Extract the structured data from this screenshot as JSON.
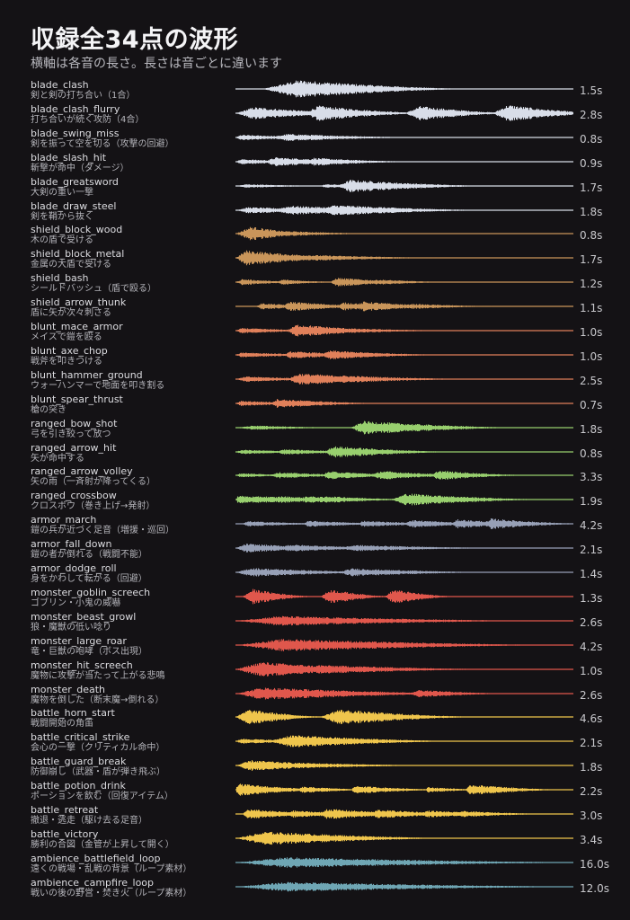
{
  "title": "収録全34点の波形",
  "subtitle": "横軸は各音の長さ。長さは音ごとに違います",
  "colors": {
    "background": "#141215",
    "blade": "#d8dde8",
    "shield": "#c9955a",
    "blunt": "#e0805a",
    "ranged": "#98cf6e",
    "armor": "#97a0b6",
    "monster": "#e0574c",
    "battle": "#efc54c",
    "ambience": "#6fa6b4"
  },
  "sounds": [
    {
      "name": "blade_clash",
      "desc": "剣と剣の打ち合い（1合）",
      "duration": "1.5s",
      "group": "blade",
      "bursts": [
        [
          0.08,
          1.0,
          0.7,
          0.55
        ],
        [
          0.3,
          0.25,
          0.2,
          0.25
        ]
      ]
    },
    {
      "name": "blade_clash_flurry",
      "desc": "打ち合いが続く攻防（4合）",
      "duration": "2.8s",
      "group": "blade",
      "bursts": [
        [
          0.0,
          0.7,
          0.35,
          0.35
        ],
        [
          0.2,
          0.85,
          0.3,
          0.35
        ],
        [
          0.5,
          0.8,
          0.3,
          0.3
        ],
        [
          0.6,
          0.25,
          0.15,
          0.2
        ],
        [
          0.76,
          0.95,
          0.3,
          0.3
        ]
      ]
    },
    {
      "name": "blade_swing_miss",
      "desc": "剣を振って空を切る（攻撃の回避）",
      "duration": "0.8s",
      "group": "blade",
      "bursts": [
        [
          0.0,
          0.3,
          0.1,
          0.35
        ],
        [
          0.1,
          0.4,
          0.35,
          0.45
        ]
      ]
    },
    {
      "name": "blade_slash_hit",
      "desc": "斬撃が命中（ダメージ）",
      "duration": "0.9s",
      "group": "blade",
      "bursts": [
        [
          0.0,
          0.3,
          0.1,
          0.3
        ],
        [
          0.08,
          0.5,
          0.25,
          0.4
        ],
        [
          0.2,
          0.45,
          0.2,
          0.3
        ],
        [
          0.3,
          0.25,
          0.15,
          0.25
        ]
      ]
    },
    {
      "name": "blade_greatsword",
      "desc": "大剣の重い一撃",
      "duration": "1.7s",
      "group": "blade",
      "bursts": [
        [
          0.0,
          0.2,
          0.2,
          0.3
        ],
        [
          0.25,
          0.2,
          0.1,
          0.3
        ],
        [
          0.3,
          0.7,
          0.25,
          0.45
        ]
      ]
    },
    {
      "name": "blade_draw_steel",
      "desc": "剣を鞘から抜く",
      "duration": "1.8s",
      "group": "blade",
      "bursts": [
        [
          0.0,
          0.35,
          0.25,
          0.4
        ],
        [
          0.1,
          0.5,
          0.4,
          0.55
        ],
        [
          0.24,
          0.6,
          0.35,
          0.5
        ]
      ]
    },
    {
      "name": "shield_block_wood",
      "desc": "木の盾で受ける",
      "duration": "0.8s",
      "group": "shield",
      "bursts": [
        [
          0.0,
          0.8,
          0.3,
          0.2
        ],
        [
          0.05,
          0.35,
          0.4,
          0.35
        ]
      ]
    },
    {
      "name": "shield_block_metal",
      "desc": "金属の大盾で受ける",
      "duration": "1.7s",
      "group": "shield",
      "bursts": [
        [
          0.0,
          0.85,
          0.2,
          0.35
        ],
        [
          0.02,
          0.5,
          0.4,
          0.6
        ],
        [
          0.3,
          0.15,
          0.1,
          0.3
        ]
      ]
    },
    {
      "name": "shield_bash",
      "desc": "シールドバッシュ（盾で殴る）",
      "duration": "1.2s",
      "group": "shield",
      "bursts": [
        [
          0.0,
          0.35,
          0.12,
          0.2
        ],
        [
          0.12,
          0.3,
          0.12,
          0.2
        ],
        [
          0.28,
          0.5,
          0.12,
          0.3
        ],
        [
          0.4,
          0.3,
          0.12,
          0.25
        ]
      ]
    },
    {
      "name": "shield_arrow_thunk",
      "desc": "盾に矢が次々刺さる",
      "duration": "1.1s",
      "group": "shield",
      "bursts": [
        [
          0.06,
          0.35,
          0.1,
          0.25
        ],
        [
          0.14,
          0.55,
          0.12,
          0.3
        ],
        [
          0.3,
          0.45,
          0.12,
          0.3
        ],
        [
          0.36,
          0.55,
          0.12,
          0.3
        ],
        [
          0.5,
          0.3,
          0.1,
          0.3
        ]
      ]
    },
    {
      "name": "blunt_mace_armor",
      "desc": "メイスで鎧を殴る",
      "duration": "1.0s",
      "group": "blunt",
      "bursts": [
        [
          0.0,
          0.3,
          0.12,
          0.3
        ],
        [
          0.15,
          0.7,
          0.2,
          0.35
        ],
        [
          0.25,
          0.3,
          0.3,
          0.4
        ]
      ]
    },
    {
      "name": "blunt_axe_chop",
      "desc": "戦斧を叩きつける",
      "duration": "1.0s",
      "group": "blunt",
      "bursts": [
        [
          0.0,
          0.3,
          0.12,
          0.3
        ],
        [
          0.14,
          0.4,
          0.15,
          0.35
        ],
        [
          0.25,
          0.5,
          0.2,
          0.35
        ],
        [
          0.35,
          0.3,
          0.15,
          0.3
        ]
      ]
    },
    {
      "name": "blunt_hammer_ground",
      "desc": "ウォーハンマーで地面を叩き割る",
      "duration": "2.5s",
      "group": "blunt",
      "bursts": [
        [
          0.0,
          0.3,
          0.2,
          0.35
        ],
        [
          0.15,
          0.65,
          0.25,
          0.45
        ],
        [
          0.25,
          0.45,
          0.3,
          0.45
        ],
        [
          0.35,
          0.3,
          0.15,
          0.3
        ]
      ]
    },
    {
      "name": "blunt_spear_thrust",
      "desc": "槍の突き",
      "duration": "0.7s",
      "group": "blunt",
      "bursts": [
        [
          0.0,
          0.3,
          0.1,
          0.3
        ],
        [
          0.1,
          0.5,
          0.15,
          0.35
        ],
        [
          0.2,
          0.25,
          0.12,
          0.25
        ]
      ]
    },
    {
      "name": "ranged_bow_shot",
      "desc": "弓を引き絞って放つ",
      "duration": "1.8s",
      "group": "ranged",
      "bursts": [
        [
          0.0,
          0.25,
          0.35,
          0.3
        ],
        [
          0.34,
          0.75,
          0.25,
          0.5
        ],
        [
          0.5,
          0.3,
          0.15,
          0.25
        ]
      ]
    },
    {
      "name": "ranged_arrow_hit",
      "desc": "矢が命中する",
      "duration": "0.8s",
      "group": "ranged",
      "bursts": [
        [
          0.0,
          0.25,
          0.12,
          0.3
        ],
        [
          0.12,
          0.3,
          0.12,
          0.35
        ],
        [
          0.26,
          0.65,
          0.18,
          0.4
        ]
      ]
    },
    {
      "name": "ranged_arrow_volley",
      "desc": "矢の雨（一斉射が降ってくる）",
      "duration": "3.3s",
      "group": "ranged",
      "bursts": [
        [
          0.0,
          0.25,
          0.1,
          0.2
        ],
        [
          0.1,
          0.35,
          0.15,
          0.3
        ],
        [
          0.25,
          0.45,
          0.18,
          0.3
        ],
        [
          0.4,
          0.5,
          0.2,
          0.3
        ],
        [
          0.58,
          0.55,
          0.12,
          0.3
        ]
      ]
    },
    {
      "name": "ranged_crossbow",
      "desc": "クロスボウ（巻き上げ→発射）",
      "duration": "1.9s",
      "group": "ranged",
      "bursts": [
        [
          0.0,
          0.45,
          0.04,
          0.3
        ],
        [
          0.06,
          0.4,
          0.04,
          0.3
        ],
        [
          0.12,
          0.4,
          0.04,
          0.3
        ],
        [
          0.2,
          0.4,
          0.04,
          0.3
        ],
        [
          0.26,
          0.4,
          0.04,
          0.3
        ],
        [
          0.46,
          0.7,
          0.3,
          0.45
        ]
      ]
    },
    {
      "name": "armor_march",
      "desc": "鎧の兵が近づく足音（増援・巡回）",
      "duration": "4.2s",
      "group": "armor",
      "bursts": [
        [
          0.02,
          0.3,
          0.1,
          0.3
        ],
        [
          0.2,
          0.35,
          0.1,
          0.3
        ],
        [
          0.36,
          0.35,
          0.1,
          0.3
        ],
        [
          0.5,
          0.45,
          0.1,
          0.3
        ],
        [
          0.64,
          0.5,
          0.1,
          0.3
        ],
        [
          0.74,
          0.6,
          0.1,
          0.3
        ]
      ]
    },
    {
      "name": "armor_fall_down",
      "desc": "鎧の者が倒れる（戦闘不能）",
      "duration": "2.1s",
      "group": "armor",
      "bursts": [
        [
          0.0,
          0.5,
          0.2,
          0.35
        ],
        [
          0.12,
          0.4,
          0.25,
          0.4
        ],
        [
          0.3,
          0.35,
          0.35,
          0.5
        ]
      ]
    },
    {
      "name": "armor_dodge_roll",
      "desc": "身をかわして転がる（回避）",
      "duration": "1.4s",
      "group": "armor",
      "bursts": [
        [
          0.0,
          0.5,
          0.3,
          0.45
        ],
        [
          0.3,
          0.45,
          0.3,
          0.45
        ]
      ]
    },
    {
      "name": "monster_goblin_screech",
      "desc": "ゴブリン・小鬼の威嚇",
      "duration": "1.3s",
      "group": "monster",
      "bursts": [
        [
          0.02,
          0.85,
          0.2,
          0.2
        ],
        [
          0.25,
          0.8,
          0.2,
          0.2
        ],
        [
          0.44,
          0.8,
          0.18,
          0.2
        ]
      ]
    },
    {
      "name": "monster_beast_growl",
      "desc": "狼・魔獣の低い唸り",
      "duration": "2.6s",
      "group": "monster",
      "bursts": [
        [
          0.0,
          0.55,
          0.85,
          0.85
        ]
      ]
    },
    {
      "name": "monster_large_roar",
      "desc": "竜・巨獣の咆哮（ボス出現）",
      "duration": "4.2s",
      "group": "monster",
      "bursts": [
        [
          0.0,
          0.7,
          0.95,
          0.9
        ]
      ]
    },
    {
      "name": "monster_hit_screech",
      "desc": "魔物に攻撃が当たって上がる悲鳴",
      "duration": "1.0s",
      "group": "monster",
      "bursts": [
        [
          0.0,
          0.85,
          0.5,
          0.45
        ],
        [
          0.2,
          0.5,
          0.3,
          0.6
        ]
      ]
    },
    {
      "name": "monster_death",
      "desc": "魔物を倒した（断末魔→倒れる）",
      "duration": "2.6s",
      "group": "monster",
      "bursts": [
        [
          0.0,
          0.7,
          0.5,
          0.7
        ],
        [
          0.52,
          0.45,
          0.12,
          0.3
        ]
      ]
    },
    {
      "name": "battle_horn_start",
      "desc": "戦闘開始の角笛",
      "duration": "4.6s",
      "group": "battle",
      "bursts": [
        [
          0.0,
          0.85,
          0.25,
          0.25
        ],
        [
          0.25,
          0.85,
          0.35,
          0.45
        ]
      ]
    },
    {
      "name": "battle_critical_strike",
      "desc": "会心の一撃（クリティカル命中）",
      "duration": "2.1s",
      "group": "battle",
      "bursts": [
        [
          0.0,
          0.3,
          0.1,
          0.3
        ],
        [
          0.1,
          0.7,
          0.4,
          0.55
        ]
      ]
    },
    {
      "name": "battle_guard_break",
      "desc": "防御崩し（武器・盾が弾き飛ぶ）",
      "duration": "1.8s",
      "group": "battle",
      "bursts": [
        [
          0.0,
          0.6,
          0.3,
          0.4
        ],
        [
          0.1,
          0.35,
          0.35,
          0.5
        ]
      ]
    },
    {
      "name": "battle_potion_drink",
      "desc": "ポーションを飲む（回復アイテム）",
      "duration": "2.2s",
      "group": "battle",
      "bursts": [
        [
          0.0,
          0.7,
          0.04,
          0.3
        ],
        [
          0.18,
          0.35,
          0.12,
          0.25
        ],
        [
          0.34,
          0.45,
          0.1,
          0.3
        ],
        [
          0.56,
          0.3,
          0.06,
          0.2
        ],
        [
          0.68,
          0.6,
          0.1,
          0.3
        ]
      ]
    },
    {
      "name": "battle_retreat",
      "desc": "撤退・逃走（駆け去る足音）",
      "duration": "3.0s",
      "group": "battle",
      "bursts": [
        [
          0.02,
          0.55,
          0.1,
          0.3
        ],
        [
          0.15,
          0.4,
          0.1,
          0.3
        ],
        [
          0.25,
          0.6,
          0.12,
          0.35
        ],
        [
          0.4,
          0.5,
          0.12,
          0.35
        ],
        [
          0.55,
          0.4,
          0.1,
          0.3
        ],
        [
          0.65,
          0.35,
          0.1,
          0.3
        ]
      ]
    },
    {
      "name": "battle_victory",
      "desc": "勝利の合図（金管が上昇して開く）",
      "duration": "3.4s",
      "group": "battle",
      "bursts": [
        [
          0.0,
          0.75,
          0.6,
          0.6
        ]
      ]
    },
    {
      "name": "ambience_battlefield_loop",
      "desc": "遠くの戦場・乱戦の背景（ループ素材）",
      "duration": "16.0s",
      "group": "ambience",
      "bursts": [
        [
          0.0,
          0.6,
          1.0,
          1.0
        ]
      ]
    },
    {
      "name": "ambience_campfire_loop",
      "desc": "戦いの後の野営・焚き火（ループ素材）",
      "duration": "12.0s",
      "group": "ambience",
      "bursts": [
        [
          0.0,
          0.55,
          1.0,
          1.0
        ]
      ]
    }
  ]
}
